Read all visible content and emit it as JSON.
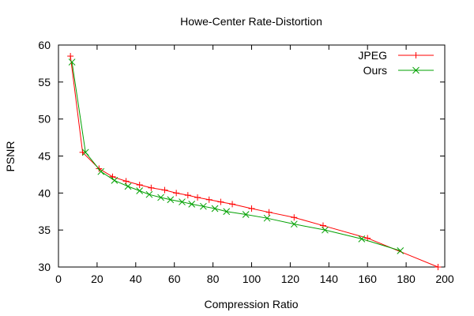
{
  "chart_data": {
    "type": "line",
    "title": "Howe-Center Rate-Distortion",
    "xlabel": "Compression Ratio",
    "ylabel": "PSNR",
    "xlim": [
      0,
      200
    ],
    "ylim": [
      30,
      60
    ],
    "xticks": [
      0,
      20,
      40,
      60,
      80,
      100,
      120,
      140,
      160,
      180,
      200
    ],
    "yticks": [
      30,
      35,
      40,
      45,
      50,
      55,
      60
    ],
    "grid": false,
    "legend_position": "top-right",
    "series": [
      {
        "name": "JPEG",
        "color": "#ff0000",
        "marker": "plus",
        "points": [
          [
            6.2,
            58.5
          ],
          [
            12.5,
            45.5
          ],
          [
            21,
            43.3
          ],
          [
            28,
            42.2
          ],
          [
            35,
            41.6
          ],
          [
            42,
            41.1
          ],
          [
            48,
            40.7
          ],
          [
            55,
            40.4
          ],
          [
            61,
            40.0
          ],
          [
            67,
            39.7
          ],
          [
            72,
            39.4
          ],
          [
            78,
            39.1
          ],
          [
            84,
            38.8
          ],
          [
            90,
            38.5
          ],
          [
            100,
            37.9
          ],
          [
            109,
            37.4
          ],
          [
            122,
            36.7
          ],
          [
            137,
            35.6
          ],
          [
            160,
            33.9
          ],
          [
            196.5,
            30.0
          ]
        ]
      },
      {
        "name": "Ours",
        "color": "#00a000",
        "marker": "x",
        "points": [
          [
            7,
            57.7
          ],
          [
            14,
            45.5
          ],
          [
            22,
            42.9
          ],
          [
            29,
            41.7
          ],
          [
            36,
            40.9
          ],
          [
            42,
            40.3
          ],
          [
            47,
            39.8
          ],
          [
            53,
            39.4
          ],
          [
            58,
            39.1
          ],
          [
            64,
            38.8
          ],
          [
            69,
            38.5
          ],
          [
            75,
            38.2
          ],
          [
            81,
            37.9
          ],
          [
            87,
            37.5
          ],
          [
            97,
            37.1
          ],
          [
            108,
            36.6
          ],
          [
            122,
            35.8
          ],
          [
            138,
            35.0
          ],
          [
            157,
            33.8
          ],
          [
            177,
            32.2
          ]
        ]
      }
    ]
  }
}
